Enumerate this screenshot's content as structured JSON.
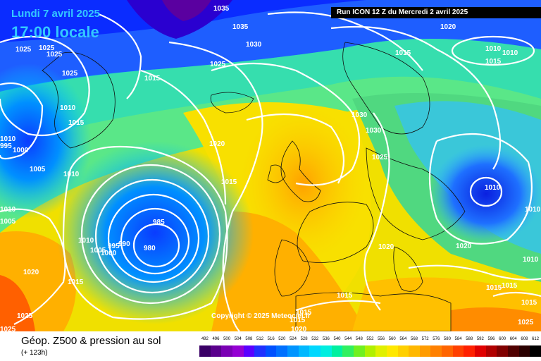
{
  "header": {
    "date": "Lundi 7 avril 2025",
    "local_time": "17:00 locale",
    "run": "Run ICON 12 Z du Mercredi 2 avril 2025"
  },
  "copyright": "Copyright © 2025 Meteociel.fr",
  "footer": {
    "title": "Géop. Z500 & pression au sol",
    "lead": "(+ 123h)"
  },
  "legend": {
    "ticks": [
      "492",
      "496",
      "500",
      "504",
      "508",
      "512",
      "516",
      "520",
      "524",
      "528",
      "532",
      "536",
      "540",
      "544",
      "548",
      "552",
      "556",
      "560",
      "564",
      "568",
      "572",
      "576",
      "580",
      "584",
      "588",
      "592",
      "596",
      "600",
      "604",
      "608",
      "612"
    ],
    "colors": [
      "#3a0066",
      "#5a008c",
      "#7a00b4",
      "#9400d3",
      "#5a00ff",
      "#2030ff",
      "#0050ff",
      "#0070ff",
      "#0094ff",
      "#00b8ff",
      "#00d8ff",
      "#00eee0",
      "#00f0a0",
      "#30f060",
      "#70f020",
      "#b0f000",
      "#e0f000",
      "#ffe800",
      "#ffd000",
      "#ffb800",
      "#ff9c00",
      "#ff8000",
      "#ff6400",
      "#ff4000",
      "#ff2000",
      "#e00000",
      "#b00000",
      "#800000",
      "#500000",
      "#2a0000",
      "#000000"
    ]
  },
  "isobars": {
    "labels": [
      "1035",
      "1035",
      "1030",
      "1025",
      "1025",
      "1025",
      "1025",
      "1025",
      "1015",
      "1010",
      "1015",
      "1020",
      "1015",
      "1010",
      "995",
      "1000",
      "1005",
      "1010",
      "1005",
      "1010",
      "985",
      "980",
      "990",
      "995",
      "1000",
      "1005",
      "1010",
      "1020",
      "1015",
      "1025",
      "1025",
      "1030",
      "1030",
      "1025",
      "1015",
      "1020",
      "1010",
      "1015",
      "1010",
      "1010",
      "1010",
      "1020",
      "1020",
      "1015",
      "1015",
      "1010",
      "1015",
      "1015",
      "1015",
      "1015",
      "1020",
      "1025"
    ]
  },
  "map_colors": {
    "blue": "#1e5eff",
    "cyan": "#00c8ff",
    "green": "#60e060",
    "yellow": "#f0e800",
    "orange": "#ffb000",
    "red": "#ff5000"
  }
}
